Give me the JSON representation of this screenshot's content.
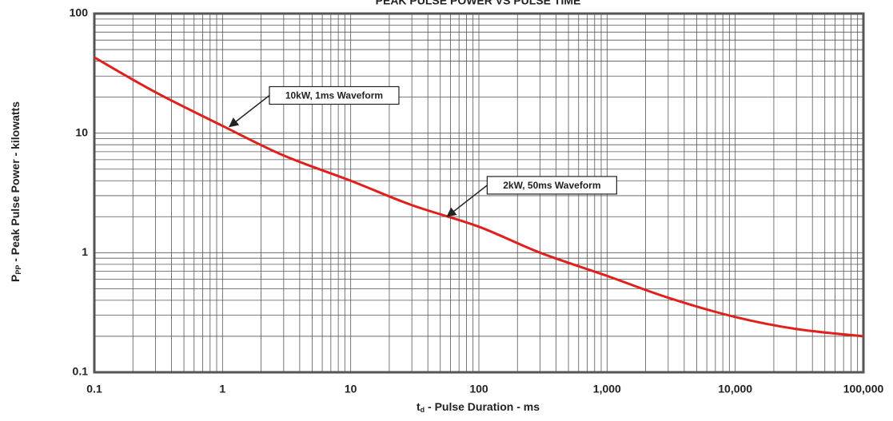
{
  "chart_data": {
    "type": "line",
    "title": "PEAK PULSE POWER VS PULSE TIME",
    "x_label": {
      "symbol": "t",
      "subscript": "d",
      "text": " - Pulse Duration - ms"
    },
    "y_label": {
      "symbol": "P",
      "subscript": "PP",
      "text": " - Peak Pulse Power - kilowatts"
    },
    "x": [
      0.1,
      0.3,
      1,
      3,
      10,
      30,
      100,
      300,
      1000,
      3000,
      10000,
      30000,
      100000
    ],
    "values": [
      43,
      22,
      11.5,
      6.5,
      4.0,
      2.5,
      1.65,
      1.0,
      0.64,
      0.42,
      0.29,
      0.23,
      0.2
    ],
    "color": "#e0201c",
    "xscale": "log",
    "yscale": "log",
    "xlim": [
      0.1,
      100000
    ],
    "ylim": [
      0.1,
      100
    ],
    "xticks": [
      0.1,
      1,
      10,
      100,
      {
        "value": 1000,
        "label": "1,000"
      },
      {
        "value": 10000,
        "label": "10,000"
      },
      {
        "value": 100000,
        "label": "100,000"
      }
    ],
    "yticks": [
      0.1,
      1,
      10,
      100
    ],
    "grid": true,
    "minor_grid": true,
    "annotations": [
      {
        "text": "10kW, 1ms Waveform",
        "x": 1.1,
        "y": 11
      },
      {
        "text": "2kW, 50ms Waveform",
        "x": 55,
        "y": 1.95
      }
    ]
  }
}
